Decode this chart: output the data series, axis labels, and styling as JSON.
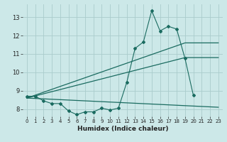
{
  "xlabel": "Humidex (Indice chaleur)",
  "bg_color": "#cce8e8",
  "line_color": "#1a6b60",
  "grid_color": "#aacccc",
  "xlim": [
    -0.5,
    23.5
  ],
  "ylim": [
    7.6,
    13.7
  ],
  "xticks": [
    0,
    1,
    2,
    3,
    4,
    5,
    6,
    7,
    8,
    9,
    10,
    11,
    12,
    13,
    14,
    15,
    16,
    17,
    18,
    19,
    20,
    21,
    22,
    23
  ],
  "yticks": [
    8,
    9,
    10,
    11,
    12,
    13
  ],
  "line1_x": [
    0,
    1,
    2,
    3,
    4,
    5,
    6,
    7,
    8,
    9,
    10,
    11,
    12,
    13,
    14,
    15,
    16,
    17,
    18,
    19,
    20,
    21,
    22,
    23
  ],
  "line1_y": [
    8.7,
    8.7,
    8.45,
    8.3,
    8.3,
    7.9,
    7.7,
    7.85,
    7.85,
    8.05,
    7.95,
    8.05,
    9.45,
    11.3,
    11.65,
    13.35,
    12.25,
    12.5,
    12.35,
    10.75,
    8.75,
    null,
    null,
    null
  ],
  "line2_x": [
    0,
    23
  ],
  "line2_y": [
    8.6,
    8.1
  ],
  "line3_x": [
    0,
    19,
    23
  ],
  "line3_y": [
    8.6,
    10.8,
    10.8
  ],
  "line4_x": [
    0,
    19,
    23
  ],
  "line4_y": [
    8.6,
    11.6,
    11.6
  ]
}
